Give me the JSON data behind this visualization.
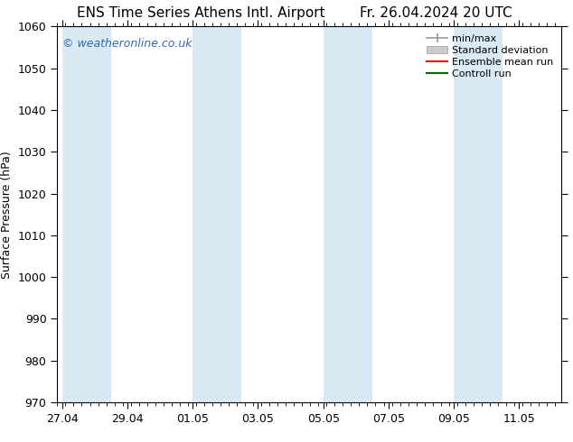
{
  "title_left": "ENS Time Series Athens Intl. Airport",
  "title_right": "Fr. 26.04.2024 20 UTC",
  "ylabel": "Surface Pressure (hPa)",
  "ylim": [
    970,
    1060
  ],
  "yticks": [
    970,
    980,
    990,
    1000,
    1010,
    1020,
    1030,
    1040,
    1050,
    1060
  ],
  "xtick_labels": [
    "27.04",
    "29.04",
    "01.05",
    "03.05",
    "05.05",
    "07.05",
    "09.05",
    "11.05"
  ],
  "xtick_positions": [
    0,
    2,
    4,
    6,
    8,
    10,
    12,
    14
  ],
  "xlim": [
    -0.15,
    15.3
  ],
  "shaded_bands": [
    {
      "x_start": 0.0,
      "x_end": 1.5
    },
    {
      "x_start": 4.0,
      "x_end": 5.5
    },
    {
      "x_start": 8.0,
      "x_end": 9.5
    },
    {
      "x_start": 12.0,
      "x_end": 13.5
    }
  ],
  "shaded_color": "#daeaf5",
  "background_color": "#ffffff",
  "watermark_text": "© weatheronline.co.uk",
  "watermark_color": "#3366bb",
  "minmax_color": "#999999",
  "stddev_color": "#cccccc",
  "ensemble_color": "#ff0000",
  "control_color": "#006600",
  "title_fontsize": 11,
  "axis_label_fontsize": 9,
  "tick_fontsize": 9,
  "legend_fontsize": 8
}
